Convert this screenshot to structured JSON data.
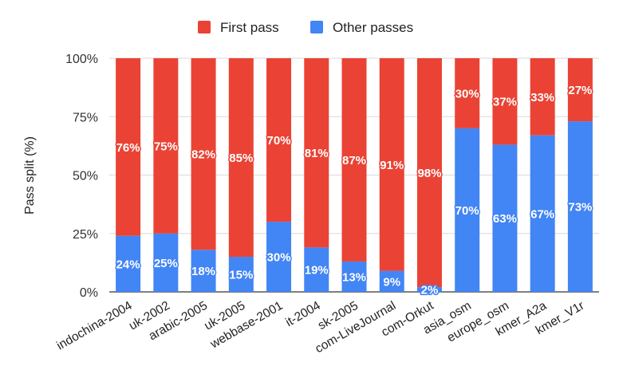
{
  "chart_data": {
    "type": "bar",
    "stacked": true,
    "title": "",
    "xlabel": "",
    "ylabel": "Pass split (%)",
    "ylim": [
      0,
      100
    ],
    "yticks": [
      "0%",
      "25%",
      "50%",
      "75%",
      "100%"
    ],
    "legend_position": "top",
    "categories": [
      "indochina-2004",
      "uk-2002",
      "arabic-2005",
      "uk-2005",
      "webbase-2001",
      "it-2004",
      "sk-2005",
      "com-LiveJournal",
      "com-Orkut",
      "asia_osm",
      "europe_osm",
      "kmer_A2a",
      "kmer_V1r"
    ],
    "series": [
      {
        "name": "Other passes",
        "color": "#4285F4",
        "values": [
          24,
          25,
          18,
          15,
          30,
          19,
          13,
          9,
          2,
          70,
          63,
          67,
          73
        ],
        "labels": [
          "24%",
          "25%",
          "18%",
          "15%",
          "30%",
          "19%",
          "13%",
          "9%",
          "2%",
          "70%",
          "63%",
          "67%",
          "73%"
        ]
      },
      {
        "name": "First pass",
        "color": "#EA4335",
        "values": [
          76,
          75,
          82,
          85,
          70,
          81,
          87,
          91,
          98,
          30,
          37,
          33,
          27
        ],
        "labels": [
          "76%",
          "75%",
          "82%",
          "85%",
          "70%",
          "81%",
          "87%",
          "91%",
          "98%",
          "30%",
          "37%",
          "33%",
          "27%"
        ]
      }
    ],
    "legend": [
      "First pass",
      "Other passes"
    ]
  }
}
